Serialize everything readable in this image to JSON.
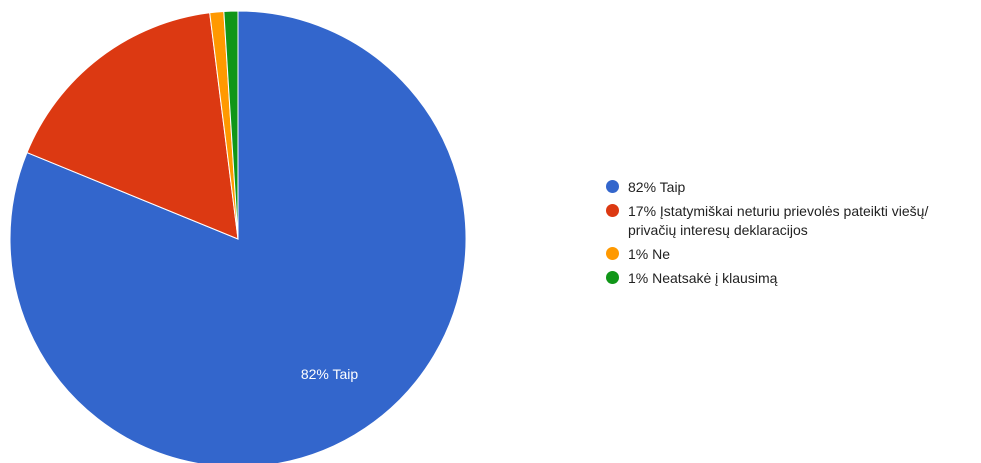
{
  "chart_data": {
    "type": "pie",
    "title": "",
    "start_angle": 0,
    "direction": "clockwise",
    "legend_position": "right",
    "slices": [
      {
        "label": "Taip",
        "value": 82,
        "display": "82% Taip",
        "color": "#3366cc",
        "inside_label": "82% Taip"
      },
      {
        "label": "Įstatymiškai neturiu prievolės pateikti viešų/ privačių interesų deklaracijos",
        "value": 17,
        "display": "17% Įstatymiškai neturiu prievolės pateikti viešų/ privačių interesų deklaracijos",
        "color": "#dc3912",
        "inside_label": ""
      },
      {
        "label": "Ne",
        "value": 1,
        "display": "1% Ne",
        "color": "#ff9900",
        "inside_label": ""
      },
      {
        "label": "Neatsakė į klausimą",
        "value": 1,
        "display": "1% Neatsakė į klausimą",
        "color": "#109618",
        "inside_label": ""
      }
    ]
  }
}
